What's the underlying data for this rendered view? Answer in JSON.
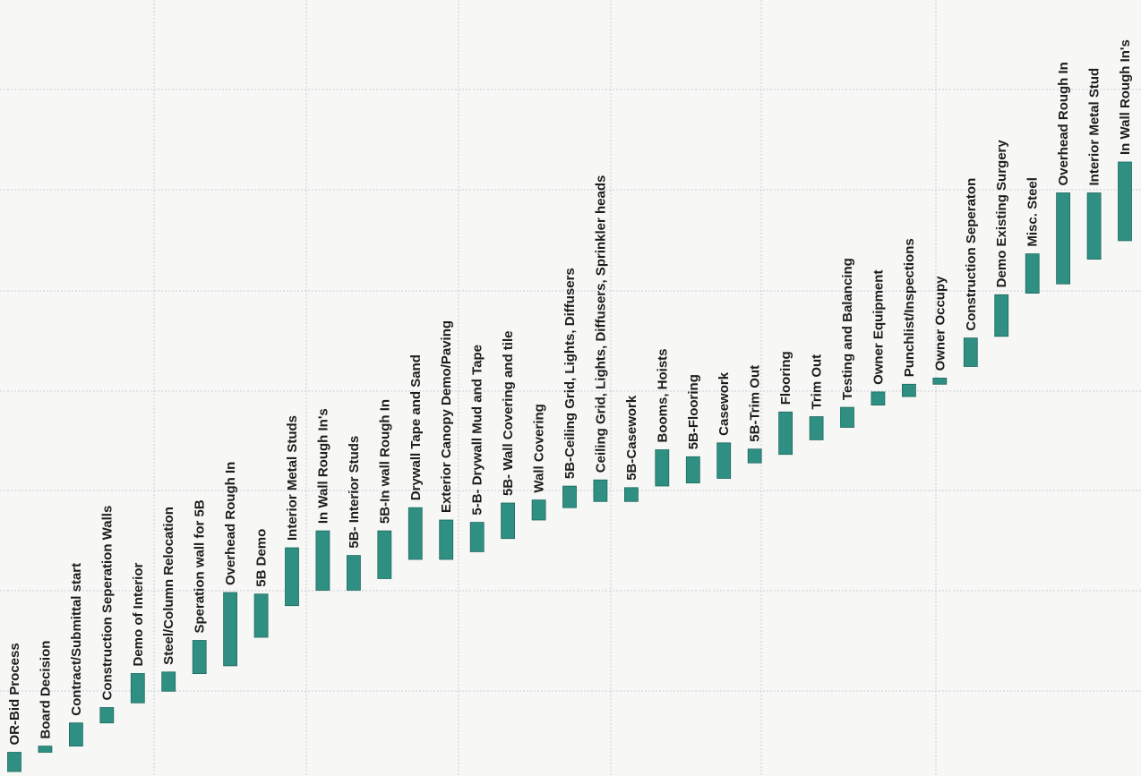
{
  "chart_data": {
    "type": "bar",
    "subtype": "gantt",
    "orientation": "rotated-90-ccw",
    "title": "",
    "xlabel": "",
    "ylabel": "",
    "grid": true,
    "colors": {
      "bar": "#2f8f82",
      "bar_edge": "#1f6a60",
      "grid": "#c9cdd6",
      "background": "#f7f7f5"
    },
    "time_range": [
      0,
      100
    ],
    "tasks": [
      {
        "name": "OR-Bid Process",
        "start": 0.0,
        "end": 2.5
      },
      {
        "name": "Board Decision",
        "start": 2.5,
        "end": 3.3
      },
      {
        "name": "Contract/Submittal start",
        "start": 3.3,
        "end": 6.3
      },
      {
        "name": "Construction Seperation Walls",
        "start": 6.3,
        "end": 8.3
      },
      {
        "name": "Demo of Interior",
        "start": 8.9,
        "end": 12.7
      },
      {
        "name": "Steel/Column Relocation",
        "start": 10.4,
        "end": 12.9
      },
      {
        "name": "Speration wall for 5B",
        "start": 12.7,
        "end": 17.0
      },
      {
        "name": "Overhead Rough In",
        "start": 13.7,
        "end": 23.2
      },
      {
        "name": "5B Demo",
        "start": 17.4,
        "end": 23.0
      },
      {
        "name": "Interior Metal Studs",
        "start": 21.5,
        "end": 29.0
      },
      {
        "name": "In Wall Rough In's",
        "start": 23.5,
        "end": 31.2
      },
      {
        "name": "5B- Interior Studs",
        "start": 23.5,
        "end": 28.0
      },
      {
        "name": "5B-In wall Rough In",
        "start": 25.0,
        "end": 31.2
      },
      {
        "name": "Drywall Tape and Sand",
        "start": 27.5,
        "end": 34.2
      },
      {
        "name": "Exterior Canopy Demo/Paving",
        "start": 27.5,
        "end": 32.6
      },
      {
        "name": "5-B- Drywall Mud and Tape",
        "start": 28.5,
        "end": 32.3
      },
      {
        "name": "5B- Wall Covering and tile",
        "start": 30.2,
        "end": 34.8
      },
      {
        "name": "Wall Covering",
        "start": 32.6,
        "end": 35.2
      },
      {
        "name": "5B-Ceiling Grid, Lights, Diffusers",
        "start": 34.2,
        "end": 37.0
      },
      {
        "name": "Ceiling Grid, Lights, Diffusers, Sprinkler heads",
        "start": 35.0,
        "end": 37.8
      },
      {
        "name": "5B-Casework",
        "start": 35.0,
        "end": 36.8
      },
      {
        "name": "Booms, Hoists",
        "start": 37.0,
        "end": 41.7
      },
      {
        "name": "5B-Flooring",
        "start": 37.4,
        "end": 40.8
      },
      {
        "name": "Casework",
        "start": 38.0,
        "end": 42.6
      },
      {
        "name": "5B-Trim Out",
        "start": 40.0,
        "end": 41.8
      },
      {
        "name": "Flooring",
        "start": 41.1,
        "end": 46.6
      },
      {
        "name": "Trim Out",
        "start": 43.0,
        "end": 46.0
      },
      {
        "name": "Testing and Balancing",
        "start": 44.6,
        "end": 47.2
      },
      {
        "name": "Owner Equipment",
        "start": 47.5,
        "end": 49.2
      },
      {
        "name": "Punchlist/Inspections",
        "start": 48.6,
        "end": 50.2
      },
      {
        "name": "Owner Occupy",
        "start": 50.2,
        "end": 51.0
      },
      {
        "name": "Construction Seperaton",
        "start": 52.5,
        "end": 56.2
      },
      {
        "name": "Demo Existing Surgery",
        "start": 56.4,
        "end": 61.8
      },
      {
        "name": "Misc. Steel",
        "start": 62.0,
        "end": 67.1
      },
      {
        "name": "Overhead Rough In",
        "start": 63.2,
        "end": 75.0
      },
      {
        "name": "Interior Metal Stud",
        "start": 66.4,
        "end": 75.0
      },
      {
        "name": "In Wall Rough In's",
        "start": 68.8,
        "end": 79.0
      }
    ]
  }
}
